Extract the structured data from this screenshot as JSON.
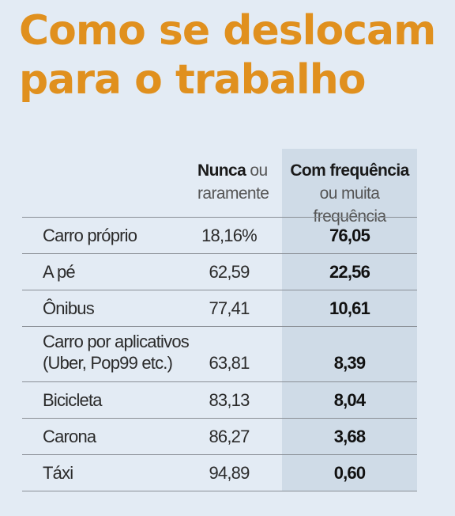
{
  "title_lines": [
    "Como se deslocam",
    "para o trabalho"
  ],
  "columns": {
    "never": {
      "strong": "Nunca",
      "rest_line1": " ou",
      "line2": "raramente"
    },
    "frequent": {
      "line1": "Com frequência",
      "line2": "ou muita frequência"
    }
  },
  "colors": {
    "title": "#e0901e",
    "background": "#e3ebf4",
    "highlight_column": "#cfdbe7"
  },
  "chart_data": {
    "type": "table",
    "title": "Como se deslocam para o trabalho",
    "columns": [
      "Nunca ou raramente",
      "Com frequência ou muita frequência"
    ],
    "rows": [
      {
        "label_lines": [
          "Carro próprio"
        ],
        "never": "18,16%",
        "frequent": "76,05"
      },
      {
        "label_lines": [
          "A pé"
        ],
        "never": "62,59",
        "frequent": "22,56"
      },
      {
        "label_lines": [
          "Ônibus"
        ],
        "never": "77,41",
        "frequent": "10,61"
      },
      {
        "label_lines": [
          "Carro por aplicativos",
          "(Uber, Pop99 etc.)"
        ],
        "never": "63,81",
        "frequent": "8,39"
      },
      {
        "label_lines": [
          "Bicicleta"
        ],
        "never": "83,13",
        "frequent": "8,04"
      },
      {
        "label_lines": [
          "Carona"
        ],
        "never": "86,27",
        "frequent": "3,68"
      },
      {
        "label_lines": [
          "Táxi"
        ],
        "never": "94,89",
        "frequent": "0,60"
      }
    ]
  }
}
